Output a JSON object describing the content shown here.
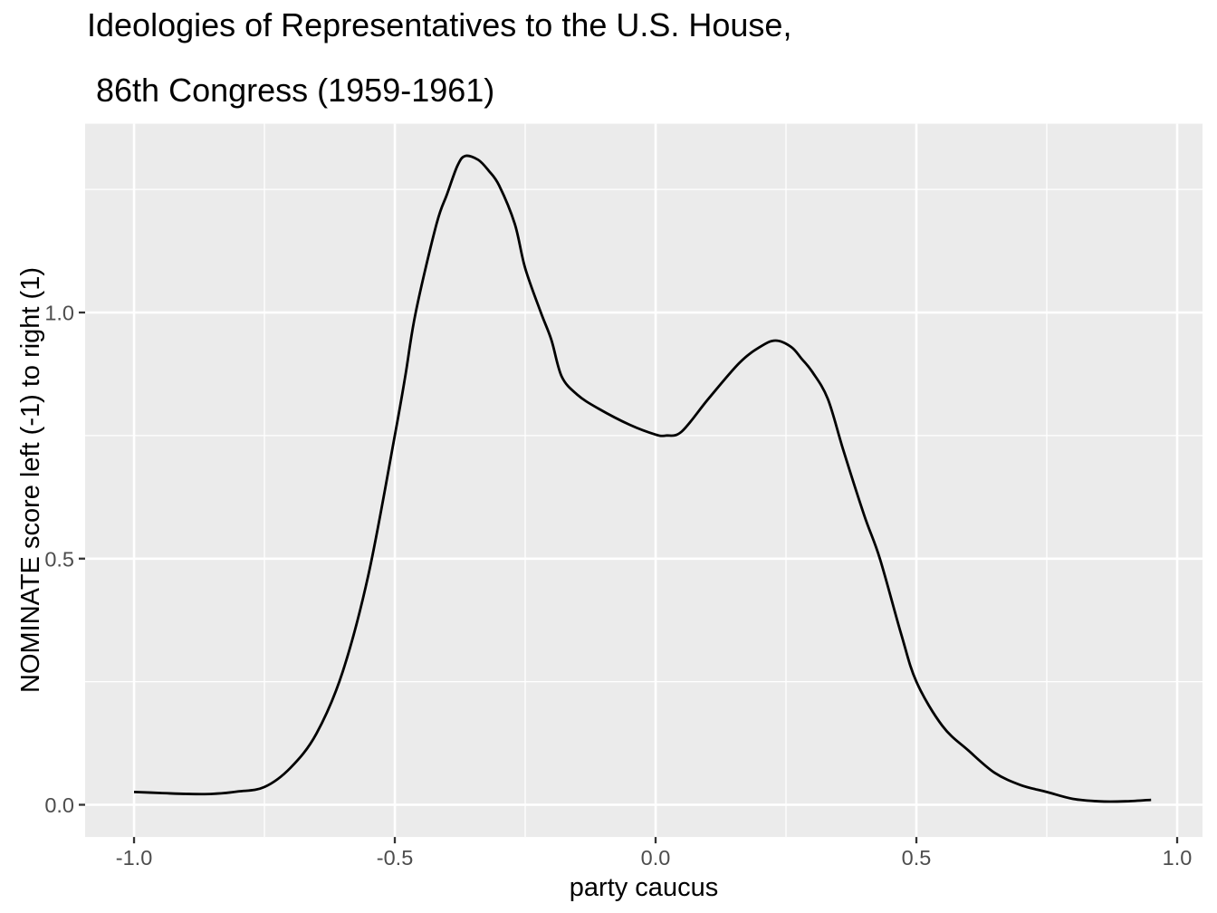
{
  "title": {
    "line1": "Ideologies of Representatives to the U.S. House,",
    "line2": "86th Congress (1959-1961)"
  },
  "axes": {
    "x": {
      "title": "party caucus",
      "tick_values": [
        -1.0,
        -0.5,
        0.0,
        0.5,
        1.0
      ],
      "tick_labels": [
        "-1.0",
        "-0.5",
        "0.0",
        "0.5",
        "1.0"
      ],
      "minor_tick_values": [
        -0.75,
        -0.25,
        0.25,
        0.75
      ]
    },
    "y": {
      "title": "NOMINATE score left (-1) to right (1)",
      "tick_values": [
        0.0,
        0.5,
        1.0
      ],
      "tick_labels": [
        "0.0",
        "0.5",
        "1.0"
      ],
      "minor_tick_values": [
        0.25,
        0.75,
        1.25
      ]
    }
  },
  "colors": {
    "page_background": "#FFFFFF",
    "panel_background": "#EBEBEB",
    "gridline": "#FFFFFF",
    "curve": "#000000",
    "axis_text": "#4D4D4D",
    "tick_mark": "#333333",
    "title_text": "#000000"
  },
  "chart_data": {
    "type": "line",
    "subtype": "density",
    "title": "Ideologies of Representatives to the U.S. House, 86th Congress (1959-1961)",
    "xlabel": "party caucus",
    "ylabel": "NOMINATE score left (-1) to right (1)",
    "xlim": [
      -1.0938,
      1.0486
    ],
    "ylim": [
      -0.0655,
      1.3835
    ],
    "x_data_range": [
      -1.0,
      0.95
    ],
    "grid": "on",
    "legend": "none",
    "key_features": {
      "left_peak": [
        -0.365,
        1.32
      ],
      "valley": [
        0.02,
        0.75
      ],
      "right_peak": [
        0.23,
        0.94
      ]
    },
    "series": [
      {
        "name": "density",
        "points": [
          [
            -1.0,
            0.026
          ],
          [
            -0.95,
            0.024
          ],
          [
            -0.9,
            0.022
          ],
          [
            -0.85,
            0.022
          ],
          [
            -0.8,
            0.027
          ],
          [
            -0.75,
            0.036
          ],
          [
            -0.7,
            0.075
          ],
          [
            -0.65,
            0.145
          ],
          [
            -0.6,
            0.27
          ],
          [
            -0.55,
            0.47
          ],
          [
            -0.5,
            0.75
          ],
          [
            -0.48,
            0.87
          ],
          [
            -0.46,
            1.0
          ],
          [
            -0.42,
            1.18
          ],
          [
            -0.4,
            1.24
          ],
          [
            -0.38,
            1.298
          ],
          [
            -0.365,
            1.318
          ],
          [
            -0.34,
            1.31
          ],
          [
            -0.32,
            1.288
          ],
          [
            -0.3,
            1.258
          ],
          [
            -0.27,
            1.18
          ],
          [
            -0.25,
            1.09
          ],
          [
            -0.22,
            1.0
          ],
          [
            -0.2,
            0.945
          ],
          [
            -0.18,
            0.87
          ],
          [
            -0.15,
            0.833
          ],
          [
            -0.11,
            0.805
          ],
          [
            -0.05,
            0.772
          ],
          [
            0.0,
            0.752
          ],
          [
            0.02,
            0.75
          ],
          [
            0.05,
            0.758
          ],
          [
            0.1,
            0.823
          ],
          [
            0.16,
            0.897
          ],
          [
            0.2,
            0.93
          ],
          [
            0.23,
            0.943
          ],
          [
            0.26,
            0.93
          ],
          [
            0.28,
            0.906
          ],
          [
            0.3,
            0.88
          ],
          [
            0.33,
            0.825
          ],
          [
            0.36,
            0.72
          ],
          [
            0.4,
            0.588
          ],
          [
            0.43,
            0.5
          ],
          [
            0.47,
            0.35
          ],
          [
            0.5,
            0.25
          ],
          [
            0.55,
            0.16
          ],
          [
            0.6,
            0.11
          ],
          [
            0.65,
            0.065
          ],
          [
            0.7,
            0.04
          ],
          [
            0.75,
            0.026
          ],
          [
            0.8,
            0.012
          ],
          [
            0.85,
            0.007
          ],
          [
            0.9,
            0.007
          ],
          [
            0.95,
            0.01
          ]
        ]
      }
    ]
  }
}
